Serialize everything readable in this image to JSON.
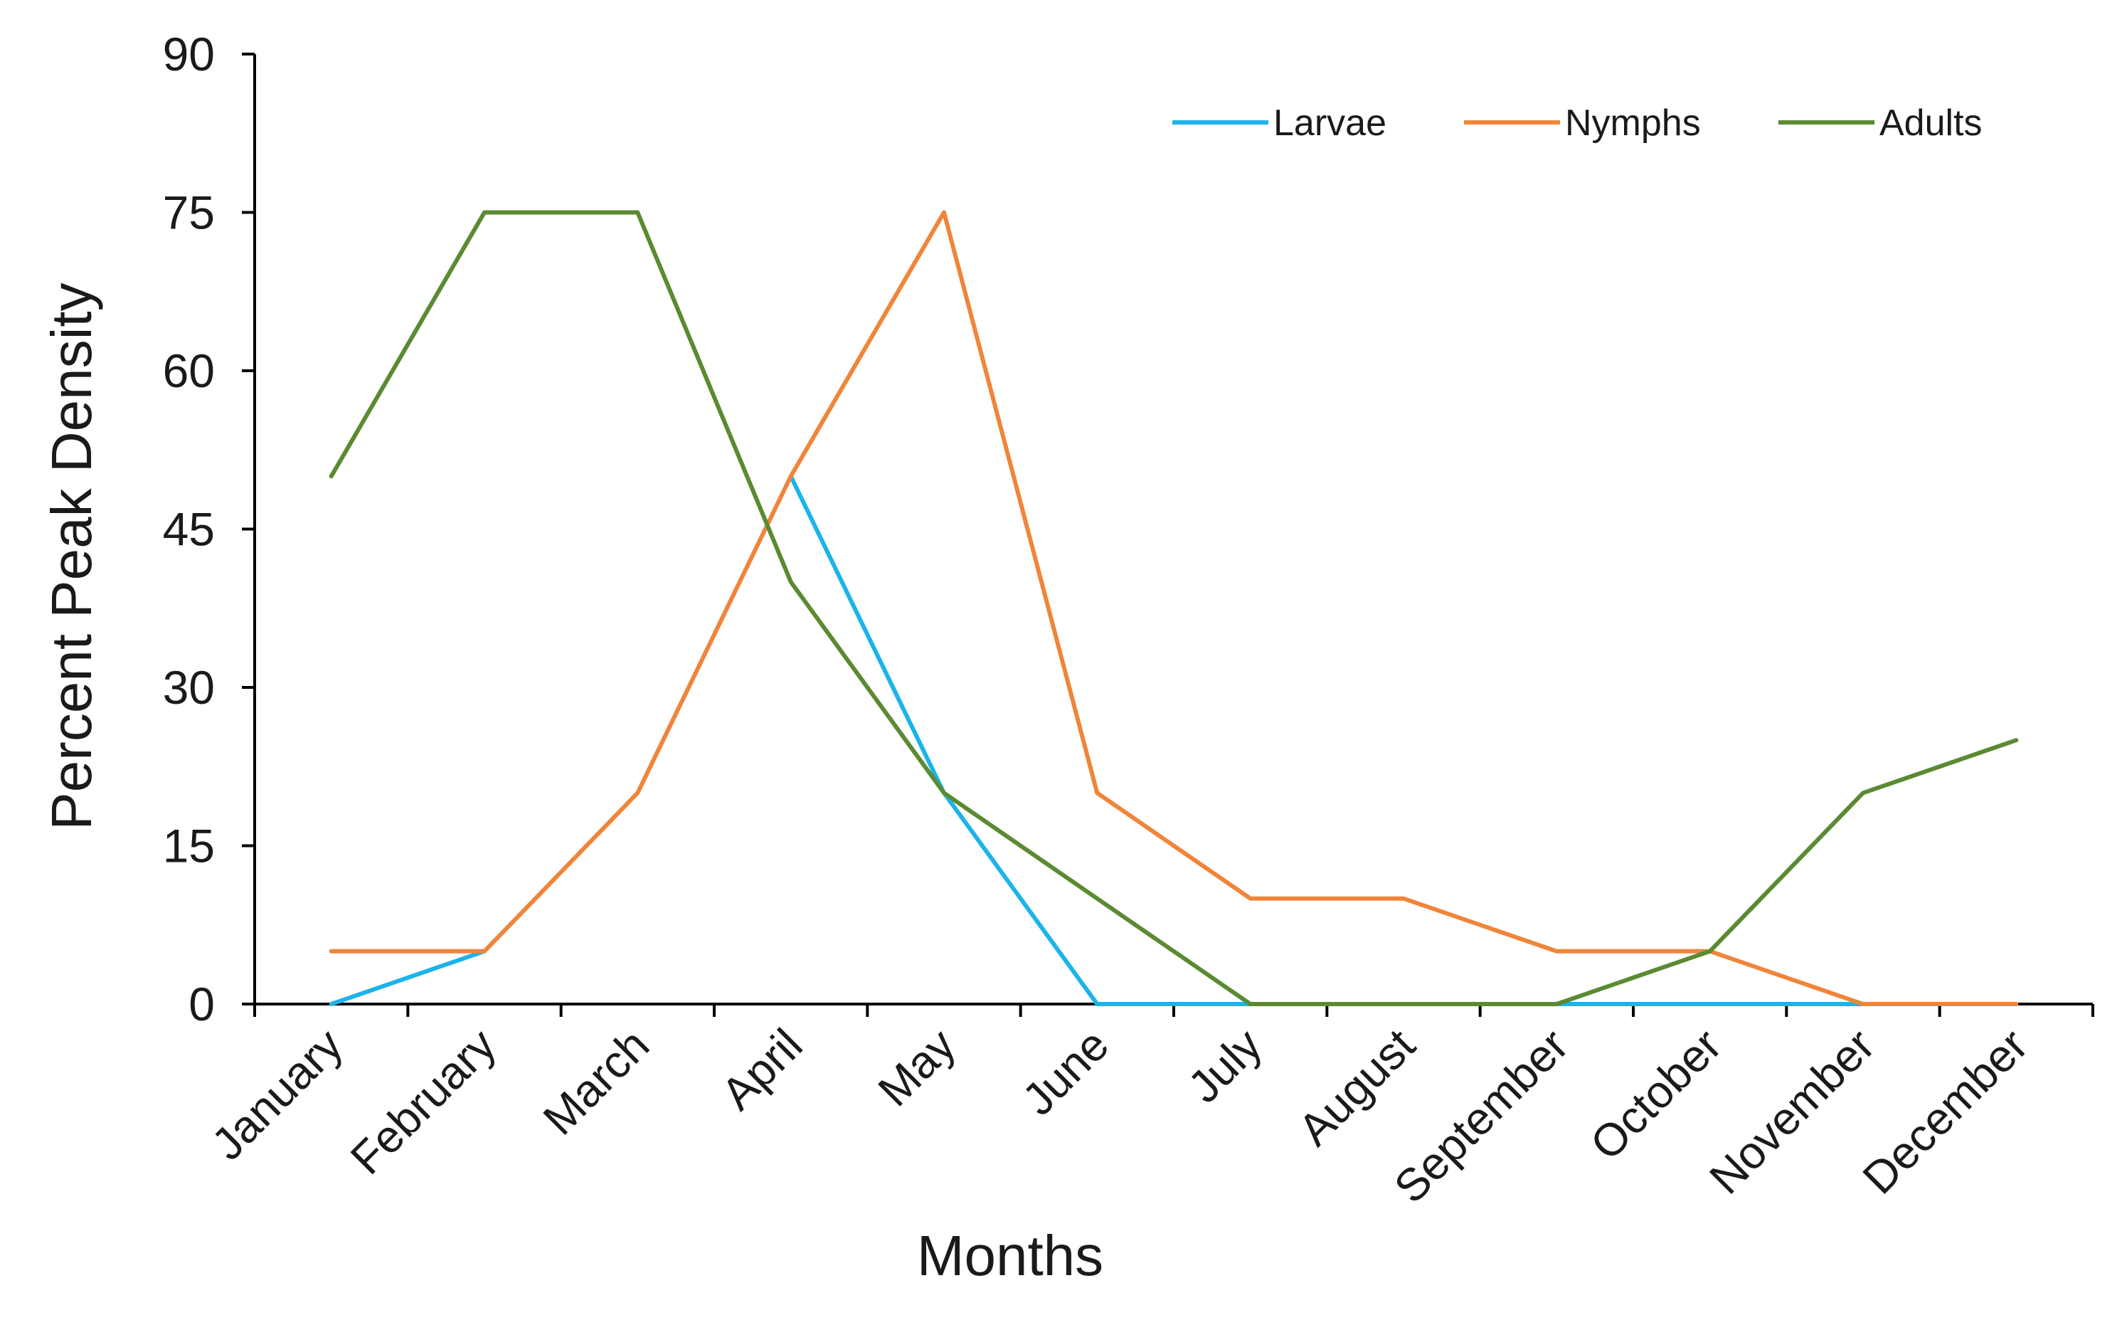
{
  "chart_data": {
    "type": "line",
    "title": "",
    "xlabel": "Months",
    "ylabel": "Percent Peak Density",
    "ylim": [
      0,
      90
    ],
    "yticks": [
      0,
      15,
      30,
      45,
      60,
      75,
      90
    ],
    "grid": false,
    "legend_position": "top-right",
    "categories": [
      "January",
      "February",
      "March",
      "April",
      "May",
      "June",
      "July",
      "August",
      "September",
      "October",
      "November",
      "December"
    ],
    "series": [
      {
        "name": "Larvae",
        "color": "#1CB4E8",
        "values": [
          0,
          5,
          null,
          50,
          20,
          0,
          0,
          0,
          0,
          0,
          0,
          null
        ]
      },
      {
        "name": "Nymphs",
        "color": "#F0853A",
        "values": [
          5,
          5,
          20,
          50,
          75,
          20,
          10,
          10,
          5,
          5,
          0,
          0
        ]
      },
      {
        "name": "Adults",
        "color": "#5B8A32",
        "values": [
          50,
          75,
          75,
          40,
          20,
          10,
          0,
          0,
          0,
          5,
          20,
          25
        ]
      }
    ]
  }
}
